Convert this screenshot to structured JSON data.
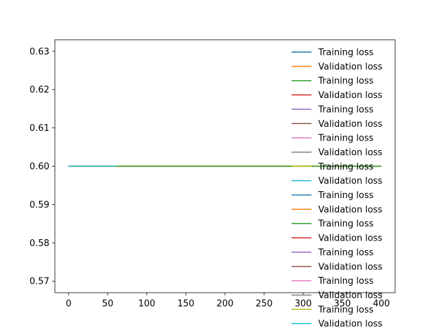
{
  "chart_data": {
    "type": "line",
    "title": "",
    "xlabel": "",
    "ylabel": "",
    "xlim": [
      -17.5,
      417.5
    ],
    "ylim": [
      0.567,
      0.633
    ],
    "xticks": [
      0,
      50,
      100,
      150,
      200,
      250,
      300,
      350,
      400
    ],
    "yticks": [
      0.57,
      0.58,
      0.59,
      0.6,
      0.61,
      0.62,
      0.63
    ],
    "xtick_labels": [
      "0",
      "50",
      "100",
      "150",
      "200",
      "250",
      "300",
      "350",
      "400"
    ],
    "ytick_labels": [
      "0.57",
      "0.58",
      "0.59",
      "0.60",
      "0.61",
      "0.62",
      "0.63"
    ],
    "grid": false,
    "legend_position": "right",
    "series": [
      {
        "name": "Training loss",
        "color": "#1f77b4",
        "x": [
          0,
          400
        ],
        "y": [
          0.6,
          0.6
        ]
      },
      {
        "name": "Validation loss",
        "color": "#ff7f0e",
        "x": [
          0,
          400
        ],
        "y": [
          0.6,
          0.6
        ]
      },
      {
        "name": "Training loss",
        "color": "#2ca02c",
        "x": [
          0,
          400
        ],
        "y": [
          0.6,
          0.6
        ]
      },
      {
        "name": "Validation loss",
        "color": "#d62728",
        "x": [
          0,
          60
        ],
        "y": [
          0.6,
          0.6
        ]
      },
      {
        "name": "Training loss",
        "color": "#9467bd",
        "x": [
          0,
          60
        ],
        "y": [
          0.6,
          0.6
        ]
      },
      {
        "name": "Validation loss",
        "color": "#8c564b",
        "x": [
          0,
          60
        ],
        "y": [
          0.6,
          0.6
        ]
      },
      {
        "name": "Training loss",
        "color": "#e377c2",
        "x": [
          0,
          60
        ],
        "y": [
          0.6,
          0.6
        ]
      },
      {
        "name": "Validation loss",
        "color": "#7f7f7f",
        "x": [
          0,
          60
        ],
        "y": [
          0.6,
          0.6
        ]
      },
      {
        "name": "Training loss",
        "color": "#bcbd22",
        "x": [
          0,
          60
        ],
        "y": [
          0.6,
          0.6
        ]
      },
      {
        "name": "Validation loss",
        "color": "#17becf",
        "x": [
          0,
          60
        ],
        "y": [
          0.6,
          0.6
        ]
      },
      {
        "name": "Training loss",
        "color": "#1f77b4",
        "x": [
          0,
          60
        ],
        "y": [
          0.6,
          0.6
        ]
      },
      {
        "name": "Validation loss",
        "color": "#ff7f0e",
        "x": [
          0,
          60
        ],
        "y": [
          0.6,
          0.6
        ]
      },
      {
        "name": "Training loss",
        "color": "#2ca02c",
        "x": [
          0,
          60
        ],
        "y": [
          0.6,
          0.6
        ]
      },
      {
        "name": "Validation loss",
        "color": "#d62728",
        "x": [
          0,
          60
        ],
        "y": [
          0.6,
          0.6
        ]
      },
      {
        "name": "Training loss",
        "color": "#9467bd",
        "x": [
          0,
          60
        ],
        "y": [
          0.6,
          0.6
        ]
      },
      {
        "name": "Validation loss",
        "color": "#8c564b",
        "x": [
          0,
          60
        ],
        "y": [
          0.6,
          0.6
        ]
      },
      {
        "name": "Training loss",
        "color": "#e377c2",
        "x": [
          0,
          60
        ],
        "y": [
          0.6,
          0.6
        ]
      },
      {
        "name": "Validation loss",
        "color": "#7f7f7f",
        "x": [
          0,
          60
        ],
        "y": [
          0.6,
          0.6
        ]
      },
      {
        "name": "Training loss",
        "color": "#bcbd22",
        "x": [
          0,
          60
        ],
        "y": [
          0.6,
          0.6
        ]
      },
      {
        "name": "Validation loss",
        "color": "#17becf",
        "x": [
          0,
          60
        ],
        "y": [
          0.6,
          0.6
        ]
      }
    ]
  }
}
